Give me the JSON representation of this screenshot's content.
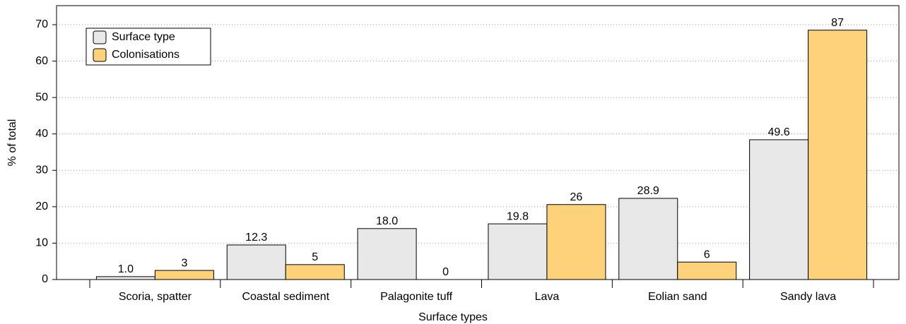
{
  "chart_data": {
    "type": "bar",
    "xlabel": "Surface types",
    "ylabel": "% of total",
    "categories": [
      "Scoria, spatter",
      "Coastal sediment",
      "Palagonite tuff",
      "Lava",
      "Eolian sand",
      "Sandy lava"
    ],
    "series": [
      {
        "name": "Surface type",
        "color": "#e8e8e8",
        "values": [
          0.8,
          9.5,
          14.0,
          15.3,
          22.3,
          38.4
        ],
        "bar_labels": [
          "1.0",
          "12.3",
          "18.0",
          "19.8",
          "28.9",
          "49.6"
        ]
      },
      {
        "name": "Colonisations",
        "color": "#fdd27a",
        "values": [
          2.5,
          4.1,
          0,
          20.6,
          4.8,
          68.5
        ],
        "bar_labels": [
          "3",
          "5",
          "0",
          "26",
          "6",
          "87"
        ]
      }
    ],
    "ylim": [
      0,
      70
    ],
    "yticks": [
      0,
      10,
      20,
      30,
      40,
      50,
      60,
      70
    ],
    "grid": true,
    "legend": "upper left"
  }
}
